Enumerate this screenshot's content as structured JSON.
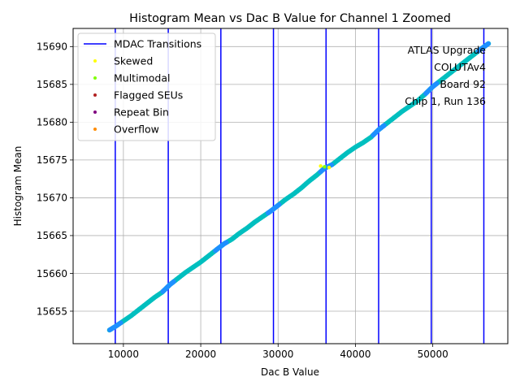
{
  "chart_data": {
    "type": "scatter",
    "title": "Histogram Mean vs Dac B Value for Channel 1 Zoomed",
    "xlabel": "Dac B Value",
    "ylabel": "Histogram Mean",
    "xlim": [
      3500,
      59700
    ],
    "ylim": [
      15650.7,
      15692.4
    ],
    "xticks": [
      10000,
      20000,
      30000,
      40000,
      50000
    ],
    "yticks": [
      15655,
      15660,
      15665,
      15670,
      15675,
      15680,
      15685,
      15690
    ],
    "grid": true,
    "legend_position": "top-left",
    "legend": [
      {
        "label": "MDAC Transitions",
        "marker": "line",
        "color": "#0000ff"
      },
      {
        "label": "Skewed",
        "marker": "dot",
        "color": "#ffff00"
      },
      {
        "label": "Multimodal",
        "marker": "dot",
        "color": "#7fff00"
      },
      {
        "label": "Flagged SEUs",
        "marker": "dot",
        "color": "#b22222"
      },
      {
        "label": "Repeat Bin",
        "marker": "dot",
        "color": "#800080"
      },
      {
        "label": "Overflow",
        "marker": "dot",
        "color": "#ff8c00"
      }
    ],
    "annotation": [
      "ATLAS Upgrade",
      "COLUTAv4",
      "Board 92",
      "Chip 1, Run 136"
    ],
    "mdac_transitions": [
      8950,
      15800,
      22600,
      29400,
      36200,
      43000,
      49800,
      56600
    ],
    "series": [
      {
        "color": "#00bfbf",
        "x": [
          8200,
          9000,
          10000,
          11000,
          12000,
          13000,
          14000,
          15000,
          16000,
          17000,
          18000,
          19000,
          20000,
          21000,
          22000,
          23000,
          24000,
          25000,
          26000,
          27000,
          28000,
          29000,
          30000,
          31000,
          32000,
          33000,
          34000,
          35000,
          36000,
          37000,
          38000,
          39000,
          40000,
          41000,
          42000,
          43000,
          44000,
          45000,
          46000,
          47000,
          48000,
          49000,
          50000,
          51000,
          52000,
          53000,
          54000,
          55000,
          56000,
          57200
        ],
        "y": [
          15652.5,
          15653.0,
          15653.7,
          15654.4,
          15655.2,
          15656.0,
          15656.8,
          15657.5,
          15658.5,
          15659.3,
          15660.1,
          15660.8,
          15661.5,
          15662.3,
          15663.1,
          15663.9,
          15664.5,
          15665.3,
          15666.0,
          15666.8,
          15667.5,
          15668.2,
          15669.0,
          15669.8,
          15670.5,
          15671.3,
          15672.2,
          15673.0,
          15673.9,
          15674.4,
          15675.2,
          15676.0,
          15676.7,
          15677.3,
          15678.0,
          15679.0,
          15679.8,
          15680.6,
          15681.4,
          15682.1,
          15682.8,
          15683.7,
          15684.7,
          15685.5,
          15686.3,
          15687.1,
          15687.9,
          15688.7,
          15689.5,
          15690.4
        ]
      }
    ],
    "highlighted_points": [
      {
        "x": 35500,
        "y": 15674.2,
        "color": "#ffff00"
      },
      {
        "x": 36600,
        "y": 15674.0,
        "color": "#ffff00"
      },
      {
        "x": 36000,
        "y": 15674.1,
        "color": "#7fff00"
      }
    ]
  }
}
